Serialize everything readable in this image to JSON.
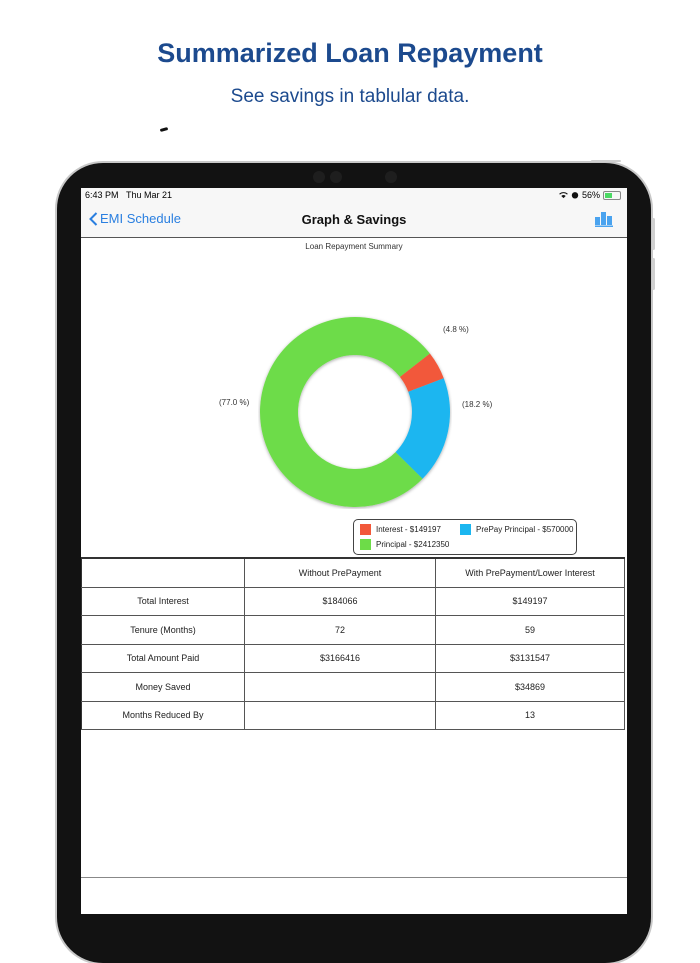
{
  "promo": {
    "title": "Summarized Loan Repayment",
    "subtitle": "See savings in tablular  data."
  },
  "status_bar": {
    "time": "6:43 PM",
    "date": "Thu Mar 21",
    "battery": "56%",
    "icons": [
      "wifi-icon",
      "alarm-icon",
      "battery-charging-icon"
    ]
  },
  "nav": {
    "back_label": "EMI Schedule",
    "title": "Graph & Savings",
    "right_icon": "bar-chart-icon"
  },
  "chart_data": {
    "type": "pie",
    "variant": "donut",
    "title": "Loan Repayment Summary",
    "categories": [
      "Interest",
      "PrePay Principal",
      "Principal"
    ],
    "values": [
      149197,
      570000,
      2412350
    ],
    "percent_labels": [
      "(4.8 %)",
      "(18.2 %)",
      "(77.0 %)"
    ],
    "percents": [
      4.8,
      18.2,
      77.0
    ],
    "colors": [
      "#f2583a",
      "#1bb6f0",
      "#6ddc48"
    ],
    "legend": [
      {
        "label": "Interest - $149197",
        "color": "#f2583a"
      },
      {
        "label": "PrePay Principal - $570000",
        "color": "#1bb6f0"
      },
      {
        "label": "Principal - $2412350",
        "color": "#6ddc48"
      }
    ],
    "legend_position": "bottom-right"
  },
  "table": {
    "headers": [
      "",
      "Without PrePayment",
      "With PrePayment/Lower Interest"
    ],
    "rows": [
      [
        "Total Interest",
        "$184066",
        "$149197"
      ],
      [
        "Tenure (Months)",
        "72",
        "59"
      ],
      [
        "Total Amount Paid",
        "$3166416",
        "$3131547"
      ],
      [
        "Money Saved",
        "",
        "$34869"
      ],
      [
        "Months Reduced By",
        "",
        "13"
      ]
    ]
  }
}
